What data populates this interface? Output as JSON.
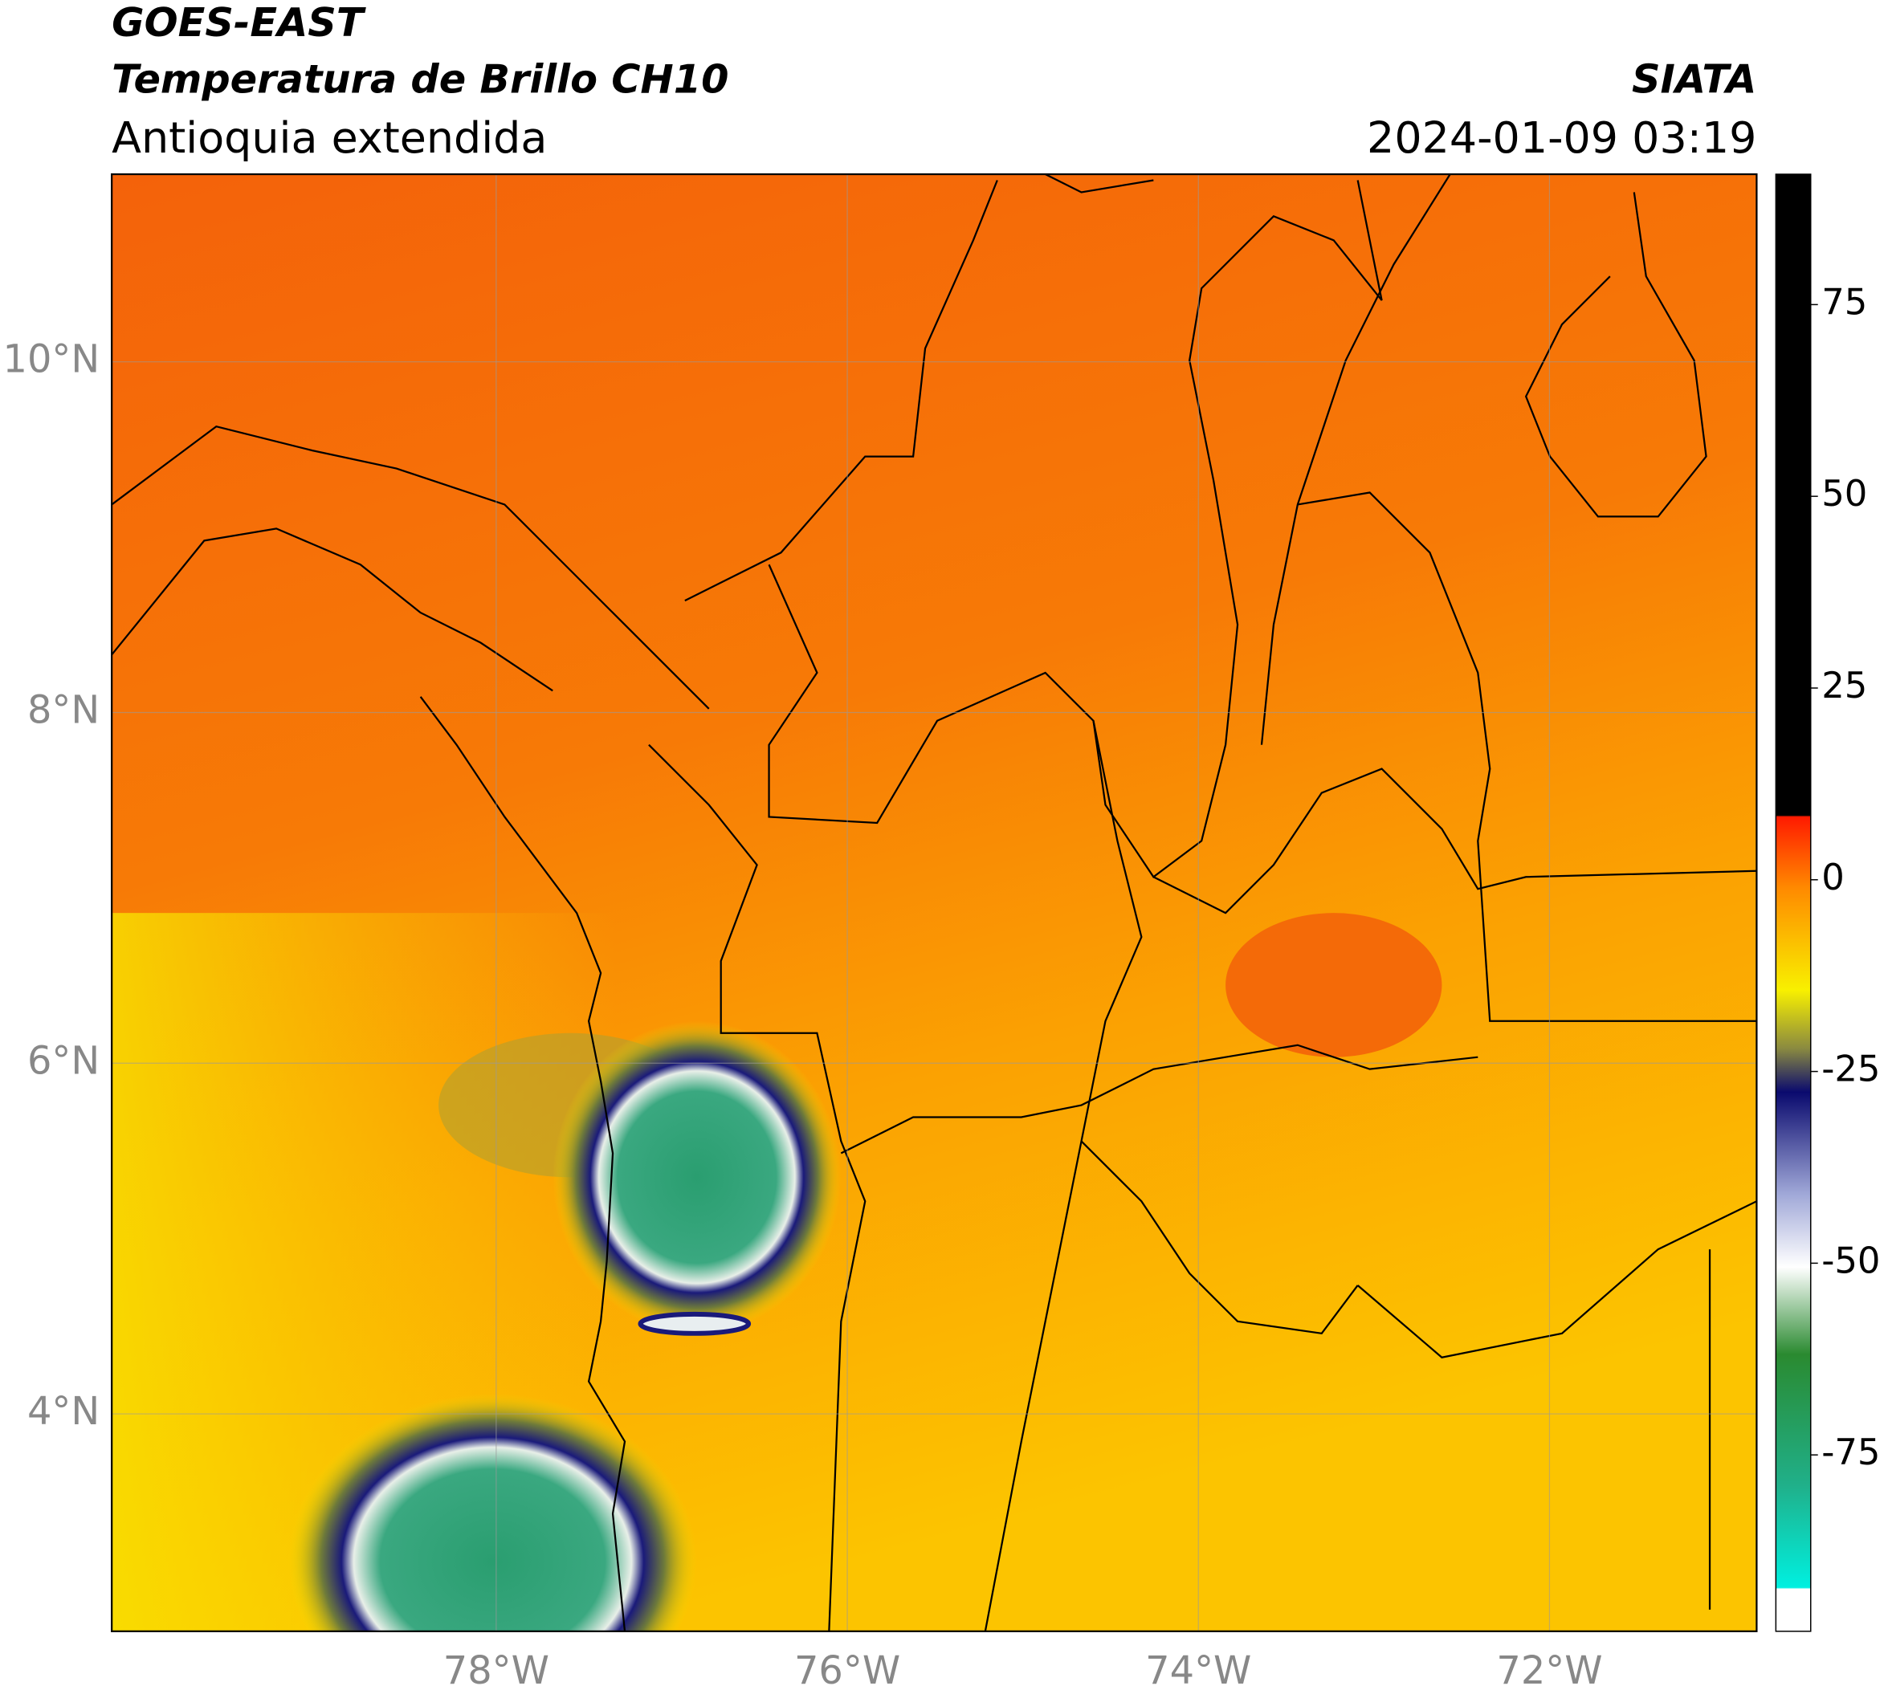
{
  "header": {
    "title": "GOES-EAST",
    "subtitle": "Temperatura de Brillo CH10",
    "region": "Antioquia extendida",
    "source": "SIATA",
    "datetime": "2024-01-09 03:19"
  },
  "map": {
    "lon_range": [
      -80.19,
      -70.82
    ],
    "lat_range": [
      2.76,
      11.07
    ],
    "lon_ticks": [
      {
        "value": -78,
        "label": "78°W"
      },
      {
        "value": -76,
        "label": "76°W"
      },
      {
        "value": -74,
        "label": "74°W"
      },
      {
        "value": -72,
        "label": "72°W"
      }
    ],
    "lat_ticks": [
      {
        "value": 10,
        "label": "10°N"
      },
      {
        "value": 8,
        "label": "8°N"
      },
      {
        "value": 6,
        "label": "6°N"
      },
      {
        "value": 4,
        "label": "4°N"
      }
    ]
  },
  "colorbar": {
    "range": [
      -98,
      92
    ],
    "ticks": [
      75,
      50,
      25,
      0,
      -25,
      -50,
      -75
    ]
  }
}
